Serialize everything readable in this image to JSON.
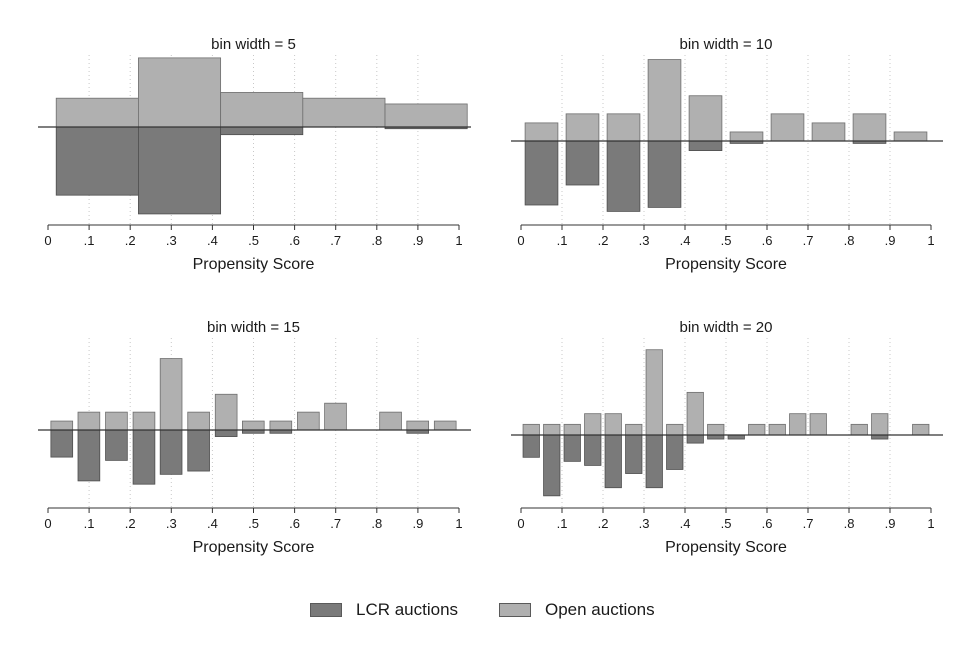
{
  "colors": {
    "lcr": "#7a7a7a",
    "open": "#b0b0b0",
    "axis": "#333333",
    "grid": "#c8c8c8"
  },
  "legend": {
    "lcr_label": "LCR auctions",
    "open_label": "Open auctions"
  },
  "chart_data": [
    {
      "type": "bar",
      "title": "bin width = 5",
      "xlabel": "Propensity Score",
      "xlim": [
        0,
        1
      ],
      "xticks": [
        "0",
        ".1",
        ".2",
        ".3",
        ".4",
        ".5",
        ".6",
        ".7",
        ".8",
        ".9",
        "1"
      ],
      "ylim": [
        -1.15,
        0.75
      ],
      "grid": true,
      "bin_width": 0.2,
      "bin_starts": [
        0.02,
        0.22,
        0.42,
        0.62,
        0.82
      ],
      "series": [
        {
          "name": "Open auctions",
          "values": [
            0.3,
            0.72,
            0.36,
            0.3,
            0.24
          ]
        },
        {
          "name": "LCR auctions",
          "values": [
            -0.8,
            -1.02,
            -0.09,
            0,
            -0.02
          ]
        }
      ]
    },
    {
      "type": "bar",
      "title": "bin width = 10",
      "xlabel": "Propensity Score",
      "xlim": [
        0,
        1
      ],
      "xticks": [
        "0",
        ".1",
        ".2",
        ".3",
        ".4",
        ".5",
        ".6",
        ".7",
        ".8",
        ".9",
        "1"
      ],
      "ylim": [
        -1.05,
        0.95
      ],
      "grid": true,
      "bin_width": 0.08,
      "bin_starts": [
        0.01,
        0.11,
        0.21,
        0.31,
        0.41,
        0.51,
        0.61,
        0.71,
        0.81,
        0.91
      ],
      "series": [
        {
          "name": "Open auctions",
          "values": [
            0.2,
            0.3,
            0.3,
            0.9,
            0.5,
            0.1,
            0.3,
            0.2,
            0.3,
            0.1
          ]
        },
        {
          "name": "LCR auctions",
          "values": [
            -0.8,
            -0.55,
            -0.88,
            -0.83,
            -0.12,
            -0.03,
            0,
            0,
            -0.03,
            0
          ]
        }
      ]
    },
    {
      "type": "bar",
      "title": "bin width = 15",
      "xlabel": "Propensity Score",
      "xlim": [
        0,
        1
      ],
      "xticks": [
        "0",
        ".1",
        ".2",
        ".3",
        ".4",
        ".5",
        ".6",
        ".7",
        ".8",
        ".9",
        "1"
      ],
      "ylim": [
        -0.95,
        1.03
      ],
      "grid": true,
      "bin_width": 0.053,
      "bin_starts": [
        0.007,
        0.073,
        0.14,
        0.207,
        0.273,
        0.34,
        0.407,
        0.473,
        0.54,
        0.607,
        0.673,
        0.74,
        0.807,
        0.873,
        0.94
      ],
      "series": [
        {
          "name": "Open auctions",
          "values": [
            0.1,
            0.2,
            0.2,
            0.2,
            0.8,
            0.2,
            0.4,
            0.1,
            0.1,
            0.2,
            0.3,
            0,
            0.2,
            0.1,
            0.1
          ]
        },
        {
          "name": "LCR auctions",
          "values": [
            -0.33,
            -0.62,
            -0.37,
            -0.66,
            -0.54,
            -0.5,
            -0.08,
            -0.04,
            -0.04,
            0,
            0,
            0,
            0,
            -0.04,
            0
          ]
        }
      ]
    },
    {
      "type": "bar",
      "title": "bin width = 20",
      "xlabel": "Propensity Score",
      "xlim": [
        0,
        1
      ],
      "xticks": [
        "0",
        ".1",
        ".2",
        ".3",
        ".4",
        ".5",
        ".6",
        ".7",
        ".8",
        ".9",
        "1"
      ],
      "ylim": [
        -0.72,
        0.91
      ],
      "grid": true,
      "bin_width": 0.04,
      "bin_starts": [
        0.005,
        0.055,
        0.105,
        0.155,
        0.205,
        0.255,
        0.305,
        0.355,
        0.405,
        0.455,
        0.505,
        0.555,
        0.605,
        0.655,
        0.705,
        0.755,
        0.805,
        0.855,
        0.905,
        0.955
      ],
      "series": [
        {
          "name": "Open auctions",
          "values": [
            0.1,
            0.1,
            0.1,
            0.2,
            0.2,
            0.1,
            0.8,
            0.1,
            0.4,
            0.1,
            0,
            0.1,
            0.1,
            0.2,
            0.2,
            0,
            0.1,
            0.2,
            0,
            0.1
          ]
        },
        {
          "name": "LCR auctions",
          "values": [
            -0.22,
            -0.6,
            -0.26,
            -0.3,
            -0.52,
            -0.38,
            -0.52,
            -0.34,
            -0.08,
            -0.04,
            -0.04,
            0,
            0,
            0,
            0,
            0,
            0,
            -0.04,
            0,
            0
          ]
        }
      ]
    }
  ]
}
